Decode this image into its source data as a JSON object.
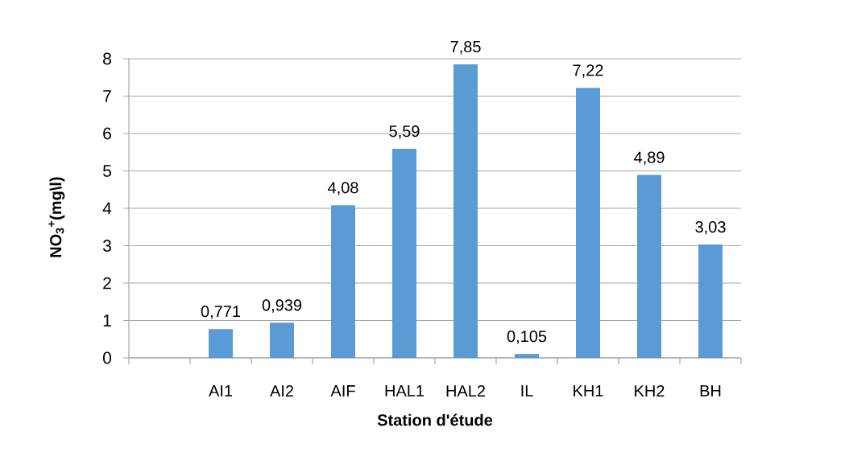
{
  "chart_data": {
    "type": "bar",
    "xlabel": "Station d'étude",
    "ylabel": "NO$_{3}$$^{+}$(mg\\l)",
    "categories": [
      null,
      "AI1",
      "AI2",
      "AIF",
      "HAL1",
      "HAL2",
      "IL",
      "KH1",
      "KH2",
      "BH"
    ],
    "values": [
      null,
      0.771,
      0.939,
      4.08,
      5.59,
      7.85,
      0.105,
      7.22,
      4.89,
      3.03
    ],
    "value_labels": [
      null,
      "0,771",
      "0,939",
      "4,08",
      "5,59",
      "7,85",
      "0,105",
      "7,22",
      "4,89",
      "3,03"
    ],
    "color": "#5b9bd5",
    "ylim": [
      0,
      8
    ],
    "yticks": [
      0,
      1,
      2,
      3,
      4,
      5,
      6,
      7,
      8
    ],
    "grid": "y"
  }
}
